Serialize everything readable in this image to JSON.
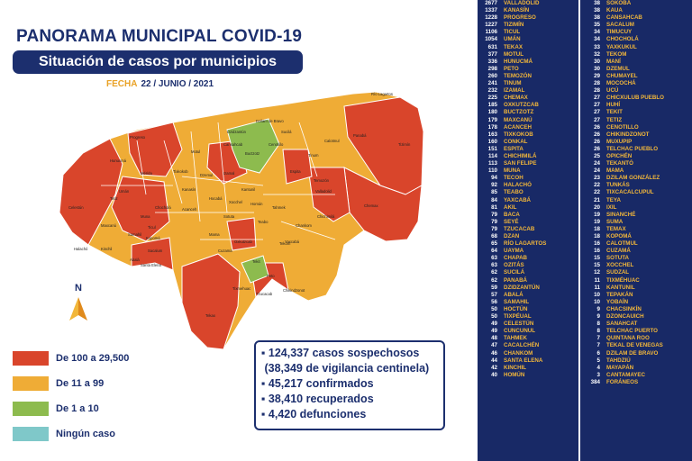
{
  "header": {
    "title": "PANORAMA MUNICIPAL COVID-19",
    "subtitle": "Situación de casos por municipios",
    "date_label": "FECHA",
    "date_value": "22 / JUNIO / 2021"
  },
  "north_label": "N",
  "colors": {
    "red": "#d9452b",
    "orange": "#efac36",
    "green": "#8dbb4e",
    "teal": "#7fc8c9",
    "navy": "#1c2f6e",
    "table_bg": "#182966",
    "table_name": "#f2b73a"
  },
  "legend": [
    {
      "label": "De 100 a 29,500",
      "color": "#d9452b"
    },
    {
      "label": "De 11 a 99",
      "color": "#efac36"
    },
    {
      "label": "De 1 a 10",
      "color": "#8dbb4e"
    },
    {
      "label": "Ningún caso",
      "color": "#7fc8c9"
    }
  ],
  "stats": [
    "124,337 casos sospechosos",
    "(38,349 de vigilancia centinela)",
    "45,217 confirmados",
    "38,410 recuperados",
    "4,420 defunciones"
  ],
  "map_labels": [
    "Río Lagartos",
    "Dzilam de Bravo",
    "Tizimín",
    "Progreso",
    "Mérida",
    "Izamal",
    "Valladolid",
    "Chemax",
    "Motul",
    "Tekax",
    "Ticul",
    "Peto",
    "Oxkutzcab",
    "Umán",
    "Hunucmá",
    "Celestún",
    "Maxcanú",
    "Espita",
    "Tinum",
    "Temozón",
    "Sotuta",
    "Yaxcabá",
    "Tzucacab",
    "Muna",
    "Sacalum",
    "Cenotillo",
    "Tekom",
    "Chankom",
    "Chichimilá",
    "Chikindzonot",
    "Tixmehuac",
    "Mama",
    "Halachó",
    "Santa Elena",
    "Buctzotz",
    "Calotmul",
    "Kanasín",
    "Panabá",
    "Sucilá",
    "Dzidzantún",
    "Tixkokob",
    "Acanceh",
    "Teabo",
    "Tekit",
    "Cuzamá",
    "Homún",
    "Hocabá",
    "Kantunil",
    "Xocchel",
    "Tahmek",
    "Tetiz",
    "Samahil",
    "Kinchil",
    "Abalá",
    "Kopomá",
    "Chocholá",
    "Dzemul",
    "Cansahcab"
  ],
  "table_left": [
    {
      "num": "2677",
      "name": "VALLADOLID"
    },
    {
      "num": "1337",
      "name": "KANASÍN"
    },
    {
      "num": "1228",
      "name": "PROGRESO"
    },
    {
      "num": "1227",
      "name": "TIZIMÍN"
    },
    {
      "num": "1106",
      "name": "TICUL"
    },
    {
      "num": "1054",
      "name": "UMÁN"
    },
    {
      "num": "631",
      "name": "TEKAX"
    },
    {
      "num": "377",
      "name": "MOTUL"
    },
    {
      "num": "336",
      "name": "HUNUCMÁ"
    },
    {
      "num": "298",
      "name": "PETO"
    },
    {
      "num": "260",
      "name": "TEMOZÓN"
    },
    {
      "num": "241",
      "name": "TINUM"
    },
    {
      "num": "232",
      "name": "IZAMAL"
    },
    {
      "num": "225",
      "name": "CHEMAX"
    },
    {
      "num": "185",
      "name": "OXKUTZCAB"
    },
    {
      "num": "180",
      "name": "BUCTZOTZ"
    },
    {
      "num": "179",
      "name": "MAXCANÚ"
    },
    {
      "num": "178",
      "name": "ACANCEH"
    },
    {
      "num": "163",
      "name": "TIXKOKOB"
    },
    {
      "num": "160",
      "name": "CONKAL"
    },
    {
      "num": "151",
      "name": "ESPITA"
    },
    {
      "num": "114",
      "name": "CHICHIMILÁ"
    },
    {
      "num": "113",
      "name": "SAN FELIPE"
    },
    {
      "num": "110",
      "name": "MUNA"
    },
    {
      "num": "94",
      "name": "TECOH"
    },
    {
      "num": "92",
      "name": "HALACHÓ"
    },
    {
      "num": "85",
      "name": "TEABO"
    },
    {
      "num": "84",
      "name": "YAXCABÁ"
    },
    {
      "num": "81",
      "name": "AKIL"
    },
    {
      "num": "79",
      "name": "BACA"
    },
    {
      "num": "79",
      "name": "SEYÉ"
    },
    {
      "num": "79",
      "name": "TZUCACAB"
    },
    {
      "num": "68",
      "name": "DZAN"
    },
    {
      "num": "65",
      "name": "RÍO LAGARTOS"
    },
    {
      "num": "64",
      "name": "UAYMA"
    },
    {
      "num": "63",
      "name": "CHAPAB"
    },
    {
      "num": "63",
      "name": "OZITÁS"
    },
    {
      "num": "62",
      "name": "SUCILÁ"
    },
    {
      "num": "62",
      "name": "PANABÁ"
    },
    {
      "num": "59",
      "name": "DZIDZANTÚN"
    },
    {
      "num": "57",
      "name": "ABALÁ"
    },
    {
      "num": "56",
      "name": "SAMAHIL"
    },
    {
      "num": "50",
      "name": "HOCTÚN"
    },
    {
      "num": "50",
      "name": "TIXPÉUAL"
    },
    {
      "num": "49",
      "name": "CELESTÚN"
    },
    {
      "num": "49",
      "name": "CUNCUNUL"
    },
    {
      "num": "48",
      "name": "TAHMEK"
    },
    {
      "num": "47",
      "name": "CACALCHÉN"
    },
    {
      "num": "46",
      "name": "CHANKOM"
    },
    {
      "num": "44",
      "name": "SANTA ELENA"
    },
    {
      "num": "42",
      "name": "KINCHIL"
    },
    {
      "num": "40",
      "name": "HOMÚN"
    }
  ],
  "table_right": [
    {
      "num": "38",
      "name": "SOKOBÁ"
    },
    {
      "num": "38",
      "name": "KAUA"
    },
    {
      "num": "38",
      "name": "CANSAHCAB"
    },
    {
      "num": "35",
      "name": "SACALUM"
    },
    {
      "num": "34",
      "name": "TIMUCUY"
    },
    {
      "num": "34",
      "name": "CHOCHOLÁ"
    },
    {
      "num": "33",
      "name": "YAXKUKUL"
    },
    {
      "num": "32",
      "name": "TEKOM"
    },
    {
      "num": "30",
      "name": "MANÍ"
    },
    {
      "num": "30",
      "name": "DZEMUL"
    },
    {
      "num": "29",
      "name": "CHUMAYEL"
    },
    {
      "num": "28",
      "name": "MOCOCHÁ"
    },
    {
      "num": "28",
      "name": "UCÚ"
    },
    {
      "num": "27",
      "name": "CHICXULUB PUEBLO"
    },
    {
      "num": "27",
      "name": "HUHÍ"
    },
    {
      "num": "27",
      "name": "TEKIT"
    },
    {
      "num": "27",
      "name": "TETIZ"
    },
    {
      "num": "26",
      "name": "CENOTILLO"
    },
    {
      "num": "26",
      "name": "CHIKINDZONOT"
    },
    {
      "num": "26",
      "name": "MUXUPIP"
    },
    {
      "num": "26",
      "name": "TELCHAC PUEBLO"
    },
    {
      "num": "25",
      "name": "OPICHÉN"
    },
    {
      "num": "24",
      "name": "TEKANTÓ"
    },
    {
      "num": "24",
      "name": "MAMA"
    },
    {
      "num": "23",
      "name": "DZILAM GONZÁLEZ"
    },
    {
      "num": "22",
      "name": "TUNKÁS"
    },
    {
      "num": "22",
      "name": "TIXCACALCUPUL"
    },
    {
      "num": "21",
      "name": "TEYA"
    },
    {
      "num": "20",
      "name": "IXIL"
    },
    {
      "num": "19",
      "name": "SINANCHÉ"
    },
    {
      "num": "19",
      "name": "SUMA"
    },
    {
      "num": "18",
      "name": "TEMAX"
    },
    {
      "num": "18",
      "name": "KOPOMÁ"
    },
    {
      "num": "16",
      "name": "CALOTMUL"
    },
    {
      "num": "16",
      "name": "CUZAMÁ"
    },
    {
      "num": "15",
      "name": "SOTUTA"
    },
    {
      "num": "15",
      "name": "XOCCHEL"
    },
    {
      "num": "12",
      "name": "SUDZAL"
    },
    {
      "num": "11",
      "name": "TIXMÉHUAC"
    },
    {
      "num": "11",
      "name": "KANTUNIL"
    },
    {
      "num": "10",
      "name": "TEPAKÁN"
    },
    {
      "num": "10",
      "name": "YOBAÍN"
    },
    {
      "num": "9",
      "name": "CHACSINKÍN"
    },
    {
      "num": "9",
      "name": "DZONCAUICH"
    },
    {
      "num": "8",
      "name": "SANAHCAT"
    },
    {
      "num": "8",
      "name": "TELCHAC PUERTO"
    },
    {
      "num": "7",
      "name": "QUINTANA ROO"
    },
    {
      "num": "7",
      "name": "TEKAL DE VENEGAS"
    },
    {
      "num": "6",
      "name": "DZILAM DE BRAVO"
    },
    {
      "num": "5",
      "name": "TAHDZIÚ"
    },
    {
      "num": "4",
      "name": "MAYAPÁN"
    },
    {
      "num": "3",
      "name": "CANTAMAYEC"
    },
    {
      "num": "384",
      "name": "FORÁNEOS"
    }
  ]
}
